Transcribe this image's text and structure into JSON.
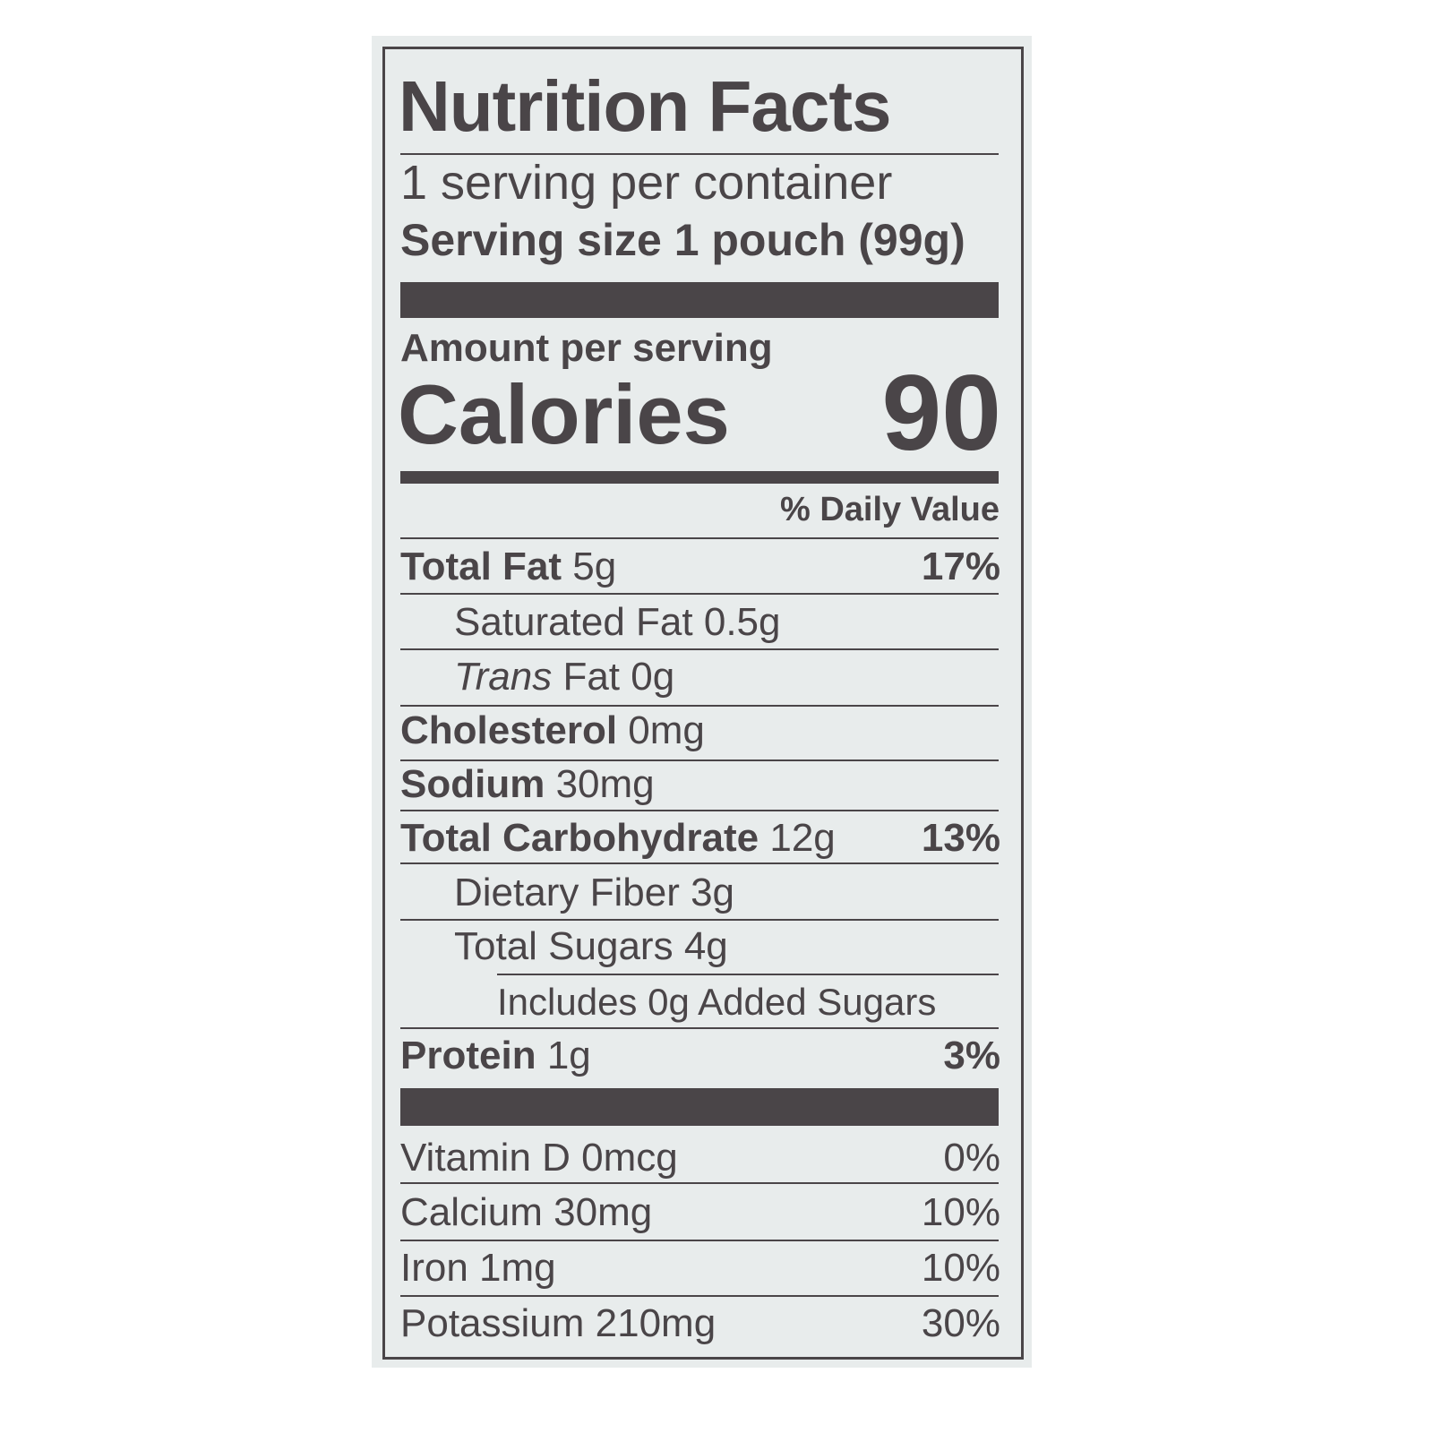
{
  "title": "Nutrition Facts",
  "servings_per_container": "1 serving per container",
  "serving_size": "Serving size 1 pouch (99g)",
  "amount_per_serving": "Amount per serving",
  "calories_label": "Calories",
  "calories_value": "90",
  "daily_value_header": "% Daily Value",
  "nutrients": [
    {
      "name": "Total Fat",
      "amount": "5g",
      "dv": "17%"
    },
    {
      "name": "Saturated Fat",
      "amount": "0.5g"
    },
    {
      "name": "Trans",
      "amount": "Fat 0g"
    },
    {
      "name": "Cholesterol",
      "amount": "0mg"
    },
    {
      "name": "Sodium",
      "amount": "30mg"
    },
    {
      "name": "Total Carbohydrate",
      "amount": "12g",
      "dv": "13%"
    },
    {
      "name": "Dietary Fiber",
      "amount": "3g"
    },
    {
      "name": "Total Sugars",
      "amount": "4g"
    },
    {
      "name": "Includes 0g Added Sugars"
    },
    {
      "name": "Protein",
      "amount": "1g",
      "dv": "3%"
    }
  ],
  "vitamins": [
    {
      "name": "Vitamin D 0mcg",
      "dv": "0%"
    },
    {
      "name": "Calcium 30mg",
      "dv": "10%"
    },
    {
      "name": "Iron 1mg",
      "dv": "10%"
    },
    {
      "name": "Potassium 210mg",
      "dv": "30%"
    }
  ]
}
